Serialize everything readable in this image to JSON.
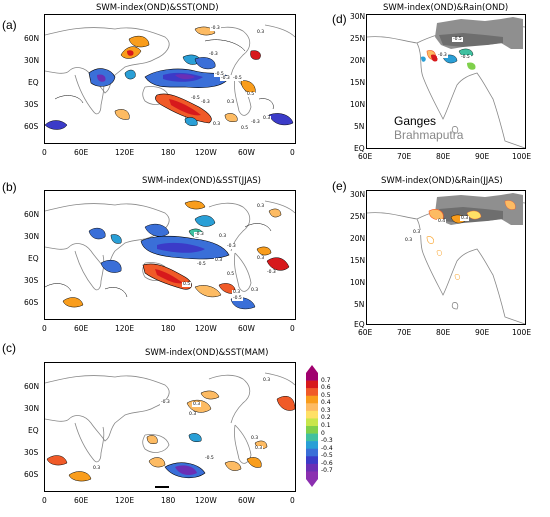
{
  "panels": [
    {
      "id": "a",
      "label": "(a)",
      "title": "SWM-index(OND)&SST(OND)"
    },
    {
      "id": "b",
      "label": "(b)",
      "title": "SWM-index(OND)&SST(JJAS)"
    },
    {
      "id": "c",
      "label": "(c)",
      "title": "SWM-index(OND)&SST(MAM)"
    },
    {
      "id": "d",
      "label": "(d)",
      "title": "SWM-index(OND)&Rain(OND)"
    },
    {
      "id": "e",
      "label": "(e)",
      "title": "SWM-index(OND)&Rain(JJAS)"
    }
  ],
  "global_lat_ticks": [
    "60N",
    "30N",
    "EQ",
    "30S",
    "60S"
  ],
  "global_lon_ticks": [
    "0",
    "60E",
    "120E",
    "180",
    "120W",
    "60W",
    "0"
  ],
  "india_lat_ticks": [
    "30N",
    "25N",
    "20N",
    "15N",
    "10N",
    "5N",
    "EQ"
  ],
  "india_lon_ticks": [
    "60E",
    "70E",
    "80E",
    "90E",
    "100E"
  ],
  "basins": {
    "ganges": "Ganges",
    "brahmaputra": "Brahmaputra"
  },
  "colorbar": {
    "labels": [
      "0.7",
      "0.6",
      "0.5",
      "0.4",
      "0.3",
      "0.2",
      "0.1",
      "0",
      "-0.3",
      "-0.4",
      "-0.5",
      "-0.6",
      "-0.7"
    ],
    "colors": [
      "#a0006e",
      "#d7191c",
      "#f05a28",
      "#f99d1c",
      "#fdbb63",
      "#ffe066",
      "#c8e64b",
      "#7fd04b",
      "#40c0a0",
      "#2a9fd6",
      "#3a6fd8",
      "#3b3bc8",
      "#6a2fb5",
      "#8b2fb0"
    ]
  },
  "contour_labels": {
    "a": [
      "-0.3",
      "0.3",
      "-0.3",
      "-0.5",
      "-0.3",
      "-0.5",
      "0.5",
      "-0.5",
      "-0.3",
      "0.3",
      "0.3",
      "-0.3",
      "0.5",
      "0.3"
    ],
    "b": [
      "0.3",
      "-0.3",
      "0.3",
      "-0.3",
      "0.3",
      "0.5",
      "0.3",
      "-0.5",
      "0.5",
      "-0.3",
      "0.3",
      "-0.5",
      "0.3"
    ],
    "c": [
      "0.3",
      "0.3",
      "-0.3",
      "0.3",
      "0.3",
      "0.3",
      "-0.5",
      "0.3"
    ],
    "d": [
      "-0.5",
      "-0.3",
      "-0.5"
    ],
    "e": [
      "0.3",
      "0.4",
      "0.3",
      "0.3"
    ]
  }
}
